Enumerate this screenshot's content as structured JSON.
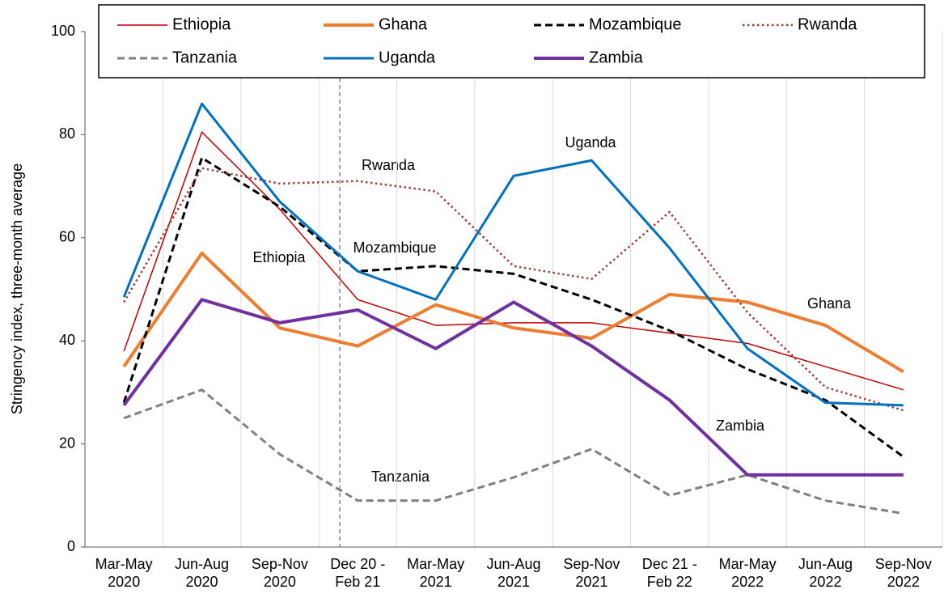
{
  "chart_data": {
    "type": "line",
    "y_label": "Stringency index, three-month average",
    "categories": [
      "Mar-May\n2020",
      "Jun-Aug\n2020",
      "Sep-Nov\n2020",
      "Dec 20 -\nFeb 21",
      "Mar-May\n2021",
      "Jun-Aug\n2021",
      "Sep-Nov\n2021",
      "Dec 21 -\nFeb 22",
      "Mar-May\n2022",
      "Jun-Aug\n2022",
      "Sep-Nov\n2022"
    ],
    "ylim": [
      0,
      100
    ],
    "yticks": [
      0,
      20,
      40,
      60,
      80,
      100
    ],
    "legend": "top",
    "series": [
      {
        "name": "Ethiopia",
        "color": "#c00000",
        "style": "solid",
        "width": 1.5,
        "values": [
          38,
          80.5,
          65.5,
          48,
          43,
          43.5,
          43.5,
          41.5,
          39.5,
          35,
          30.5
        ]
      },
      {
        "name": "Ghana",
        "color": "#ed7d31",
        "style": "solid",
        "width": 4,
        "values": [
          35,
          57,
          42.5,
          39,
          47,
          42.5,
          40.5,
          49,
          47.5,
          43,
          34
        ]
      },
      {
        "name": "Mozambique",
        "color": "#000000",
        "style": "dashed",
        "width": 3,
        "values": [
          28,
          75.5,
          66,
          53.5,
          54.5,
          53,
          48,
          42,
          34.5,
          28.5,
          17.5
        ]
      },
      {
        "name": "Rwanda",
        "color": "#a0403c",
        "style": "dotted",
        "width": 2.5,
        "values": [
          47.5,
          73.5,
          70.5,
          71,
          69,
          54.5,
          52,
          65,
          45.5,
          31,
          26.5
        ]
      },
      {
        "name": "Tanzania",
        "color": "#808080",
        "style": "dashed",
        "width": 3,
        "values": [
          25,
          30.5,
          18,
          9,
          9,
          13.5,
          19,
          10,
          14,
          9,
          6.5
        ]
      },
      {
        "name": "Uganda",
        "color": "#0070c0",
        "style": "solid",
        "width": 3,
        "values": [
          48.5,
          86,
          67,
          53.5,
          48,
          72,
          75,
          58,
          38.5,
          28,
          27.5
        ]
      },
      {
        "name": "Zambia",
        "color": "#7030a0",
        "style": "solid",
        "width": 4,
        "values": [
          27.5,
          48,
          43.5,
          46,
          38.5,
          47.5,
          39,
          28.5,
          14,
          14,
          14
        ]
      }
    ],
    "annotations": [
      "Rwanda",
      "Uganda",
      "Ethiopia",
      "Mozambique",
      "Ghana",
      "Zambia",
      "Tanzania"
    ]
  }
}
